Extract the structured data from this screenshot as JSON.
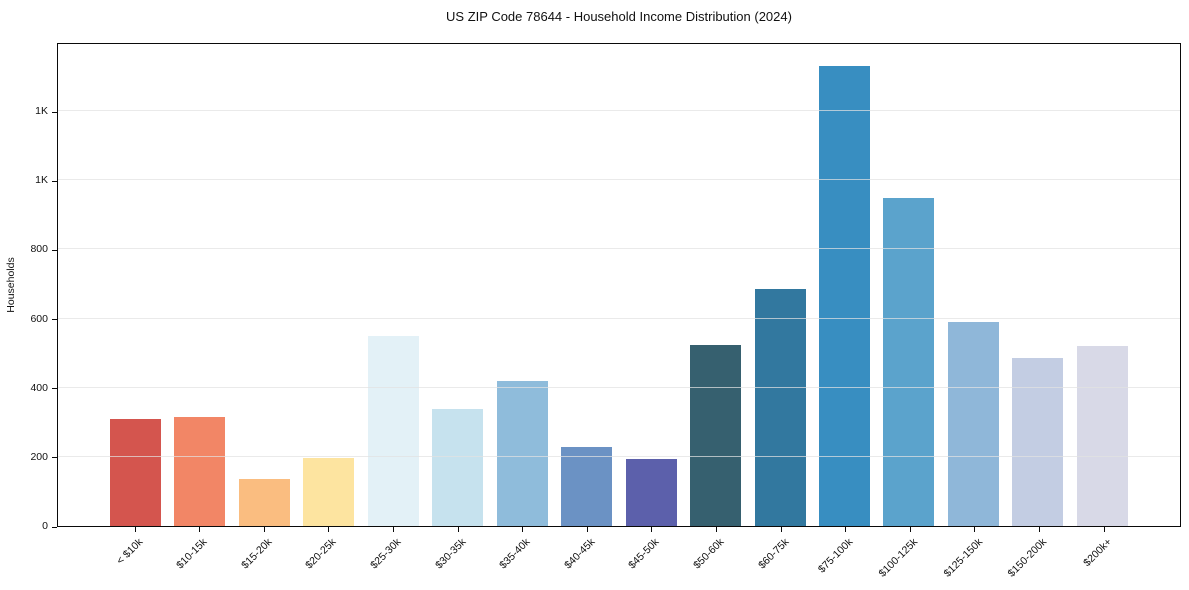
{
  "chart_data": {
    "type": "bar",
    "title": "US ZIP Code 78644 - Household Income Distribution (2024)",
    "xlabel": "",
    "ylabel": "Households",
    "categories": [
      "< $10k",
      "$10-15k",
      "$15-20k",
      "$20-25k",
      "$25-30k",
      "$30-35k",
      "$35-40k",
      "$40-45k",
      "$45-50k",
      "$50-60k",
      "$60-75k",
      "$75-100k",
      "$100-125k",
      "$125-150k",
      "$150-200k",
      "$200k+"
    ],
    "values": [
      310,
      315,
      135,
      198,
      550,
      340,
      420,
      230,
      193,
      525,
      685,
      1330,
      950,
      590,
      485,
      520
    ],
    "bar_colors": [
      "#d4554e",
      "#f28666",
      "#fabd80",
      "#fde4a0",
      "#e3f1f7",
      "#c6e2ee",
      "#8fbcdb",
      "#6b92c4",
      "#5c60ab",
      "#36606f",
      "#32789f",
      "#388ec1",
      "#5ba3cc",
      "#8fb7d9",
      "#c3cde3",
      "#d8d9e7"
    ],
    "ylim": [
      0,
      1400
    ],
    "ytick_values": [
      0,
      200,
      400,
      600,
      800,
      1000,
      1200
    ],
    "ytick_labels": [
      "0",
      "200",
      "400",
      "600",
      "800",
      "1K",
      "1K"
    ],
    "grid": "horizontal",
    "gridline_color": "#e6e6e6",
    "legend": "none",
    "background": "#ffffff",
    "spine_color": "#000000",
    "x_tick_label_rotation_deg": 45
  }
}
